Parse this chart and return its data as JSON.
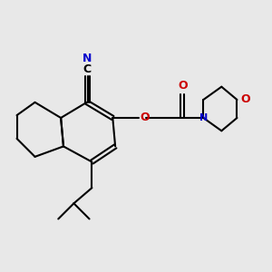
{
  "background_color": "#e8e8e8",
  "bond_color": "#000000",
  "atom_colors": {
    "C": "#000000",
    "N": "#0000cc",
    "O": "#cc0000"
  },
  "figsize": [
    3.0,
    3.0
  ],
  "dpi": 100
}
